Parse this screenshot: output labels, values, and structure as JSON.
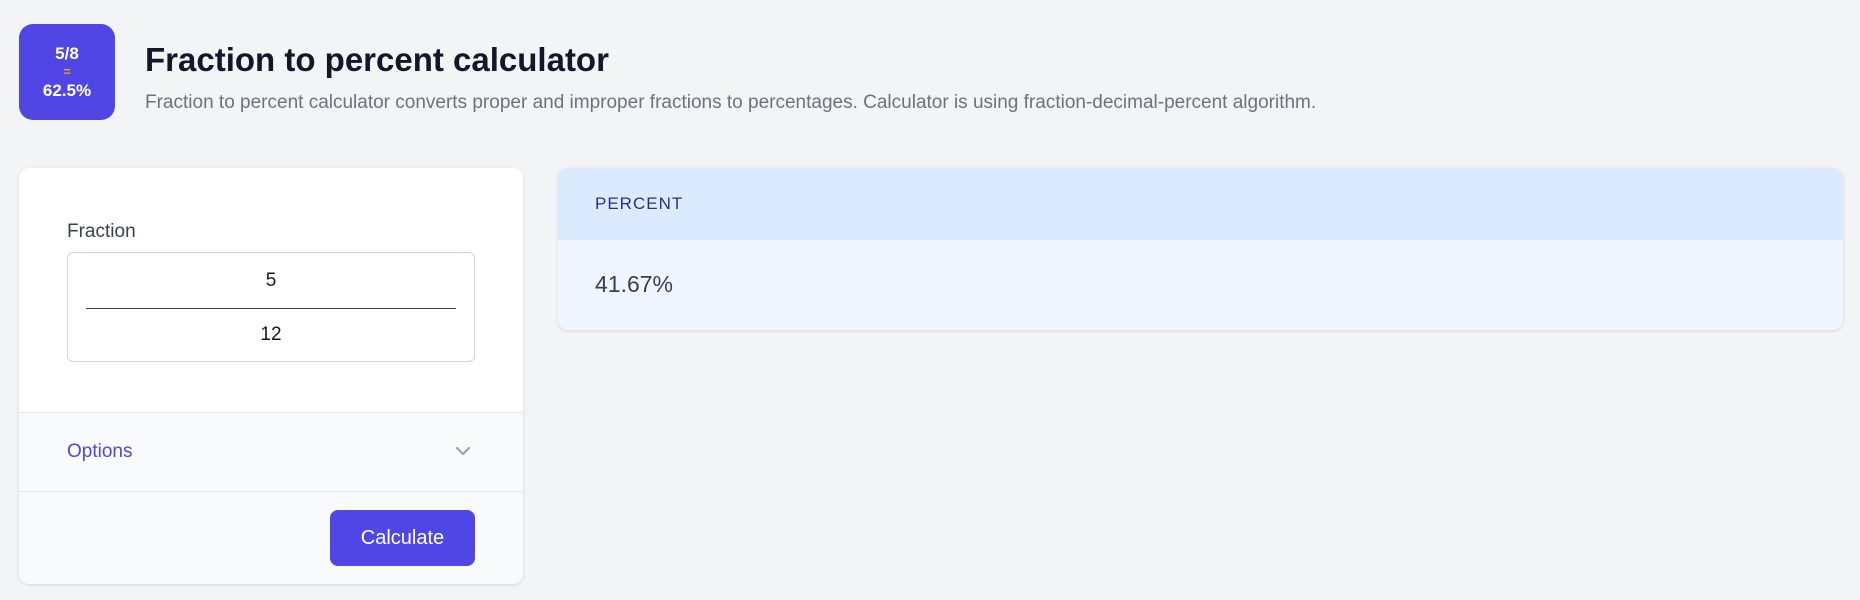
{
  "header": {
    "logo": {
      "top": "5/8",
      "equals": "=",
      "bottom": "62.5%"
    },
    "title": "Fraction to percent calculator",
    "subtitle": "Fraction to percent calculator converts proper and improper fractions to percentages. Calculator is using fraction-decimal-percent algorithm."
  },
  "form": {
    "fraction_label": "Fraction",
    "numerator": "5",
    "denominator": "12",
    "options_label": "Options",
    "options_icon": "chevron-down-icon",
    "calculate_label": "Calculate"
  },
  "result": {
    "header": "PERCENT",
    "value": "41.67%"
  },
  "colors": {
    "accent": "#4f46e5",
    "result_header": "#dbeafe",
    "result_body": "#eff6ff"
  }
}
